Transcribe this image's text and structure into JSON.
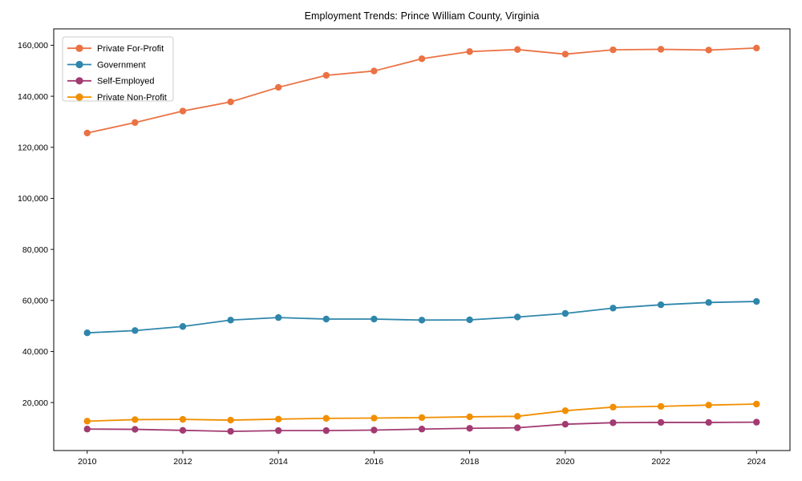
{
  "chart_data": {
    "type": "line",
    "title": "Employment Trends: Prince William County, Virginia",
    "xlabel": "",
    "ylabel": "",
    "grid": false,
    "legend_position": "upper-left",
    "xlim": [
      2009.3,
      2024.7
    ],
    "ylim": [
      1190,
      166410
    ],
    "x": [
      2010,
      2011,
      2012,
      2013,
      2014,
      2015,
      2016,
      2017,
      2018,
      2019,
      2020,
      2021,
      2022,
      2023,
      2024
    ],
    "xticks": [
      2010,
      2012,
      2014,
      2016,
      2018,
      2020,
      2022,
      2024
    ],
    "xtick_labels": [
      "2010",
      "2012",
      "2014",
      "2016",
      "2018",
      "2020",
      "2022",
      "2024"
    ],
    "yticks": [
      20000,
      40000,
      60000,
      80000,
      100000,
      120000,
      140000,
      160000
    ],
    "ytick_labels": [
      "20,000",
      "40,000",
      "60,000",
      "80,000",
      "100,000",
      "120,000",
      "140,000",
      "160,000"
    ],
    "series": [
      {
        "name": "Private For-Profit",
        "color": "#EB7244",
        "values": [
          125600,
          129700,
          134200,
          137800,
          143500,
          148200,
          149900,
          154700,
          157500,
          158300,
          156500,
          158200,
          158400,
          158100,
          158900
        ]
      },
      {
        "name": "Government",
        "color": "#2E86AB",
        "values": [
          47300,
          48200,
          49800,
          52300,
          53300,
          52700,
          52700,
          52300,
          52400,
          53500,
          54900,
          57000,
          58300,
          59200,
          59600
        ]
      },
      {
        "name": "Self-Employed",
        "color": "#A23B72",
        "values": [
          9600,
          9500,
          9100,
          8700,
          9000,
          9000,
          9200,
          9600,
          9900,
          10100,
          11500,
          12100,
          12200,
          12200,
          12300
        ]
      },
      {
        "name": "Private Non-Profit",
        "color": "#F18F01",
        "values": [
          12700,
          13300,
          13400,
          13100,
          13500,
          13800,
          13900,
          14100,
          14400,
          14600,
          16800,
          18200,
          18500,
          19000,
          19400
        ]
      }
    ]
  }
}
